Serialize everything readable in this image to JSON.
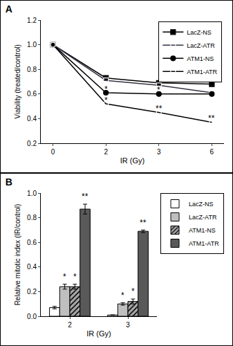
{
  "chart_data": [
    {
      "type": "line",
      "title": "A",
      "x_label": "IR (Gy)",
      "y_label": "Viability (treated/control)",
      "categories": [
        "0",
        "2",
        "3",
        "6"
      ],
      "series": [
        {
          "name": "LacZ-NS",
          "color": "#000000",
          "marker": "square",
          "values": [
            1.0,
            0.73,
            0.69,
            0.68
          ]
        },
        {
          "name": "LacZ-ATR",
          "color": "#333344",
          "marker": "square-open",
          "values": [
            1.0,
            0.71,
            0.67,
            0.61
          ]
        },
        {
          "name": "ATM1-NS",
          "color": "#000000",
          "marker": "circle",
          "values": [
            1.0,
            0.61,
            0.6,
            0.6
          ]
        },
        {
          "name": "ATM1-ATR",
          "color": "#000000",
          "marker": "circle-open",
          "values": [
            1.0,
            0.52,
            0.45,
            0.37
          ]
        }
      ],
      "annotations": [
        {
          "x": "2",
          "y": 0.64,
          "text": "*"
        },
        {
          "x": "2",
          "y": 0.55,
          "text": "*"
        },
        {
          "x": "3",
          "y": 0.63,
          "text": "*"
        },
        {
          "x": "3",
          "y": 0.48,
          "text": "**"
        },
        {
          "x": "6",
          "y": 0.4,
          "text": "**"
        }
      ],
      "ylim": [
        0.2,
        1.2
      ],
      "yticks": [
        0.2,
        0.4,
        0.6,
        0.8,
        {
          "value": 1,
          "label": "1.0"
        },
        1.2
      ],
      "grid": false,
      "legend": "top right"
    },
    {
      "type": "bar",
      "title": "B",
      "x_label": "IR (Gy)",
      "y_label": "Relative mitotic index (IR/control)",
      "categories": [
        "2",
        "3"
      ],
      "series": [
        {
          "name": "LacZ-NS",
          "color": "#ffffff",
          "values": [
            0.07,
            0.01
          ],
          "errors": [
            0.01,
            0
          ]
        },
        {
          "name": "LacZ-ATR",
          "color": "#bfbfbf",
          "values": [
            0.24,
            0.1
          ],
          "errors": [
            0.02,
            0.01
          ]
        },
        {
          "name": "ATM1-NS",
          "color": "#a6a6a6",
          "marker": "hatched",
          "values": [
            0.24,
            0.12
          ],
          "errors": [
            0.02,
            0.02
          ]
        },
        {
          "name": "ATM1-ATR",
          "color": "#595959",
          "values": [
            0.87,
            0.69
          ],
          "errors": [
            0.04,
            0.01
          ]
        }
      ],
      "annotations": [
        {
          "x": "2",
          "series": "LacZ-ATR",
          "y": 0.27,
          "text": "*"
        },
        {
          "x": "2",
          "series": "ATM1-NS",
          "y": 0.27,
          "text": "*"
        },
        {
          "x": "2",
          "series": "ATM1-ATR",
          "y": 0.92,
          "text": "**"
        },
        {
          "x": "3",
          "series": "LacZ-ATR",
          "y": 0.12,
          "text": "*"
        },
        {
          "x": "3",
          "series": "ATM1-NS",
          "y": 0.15,
          "text": "*"
        },
        {
          "x": "3",
          "series": "ATM1-ATR",
          "y": 0.71,
          "text": "**"
        }
      ],
      "ylim": [
        0,
        1.0
      ],
      "yticks": [
        {
          "value": 0,
          "label": "0.0"
        },
        0.2,
        0.4,
        0.6,
        0.8,
        {
          "value": 1,
          "label": "1.0"
        }
      ],
      "grid": false,
      "legend": "right"
    }
  ]
}
